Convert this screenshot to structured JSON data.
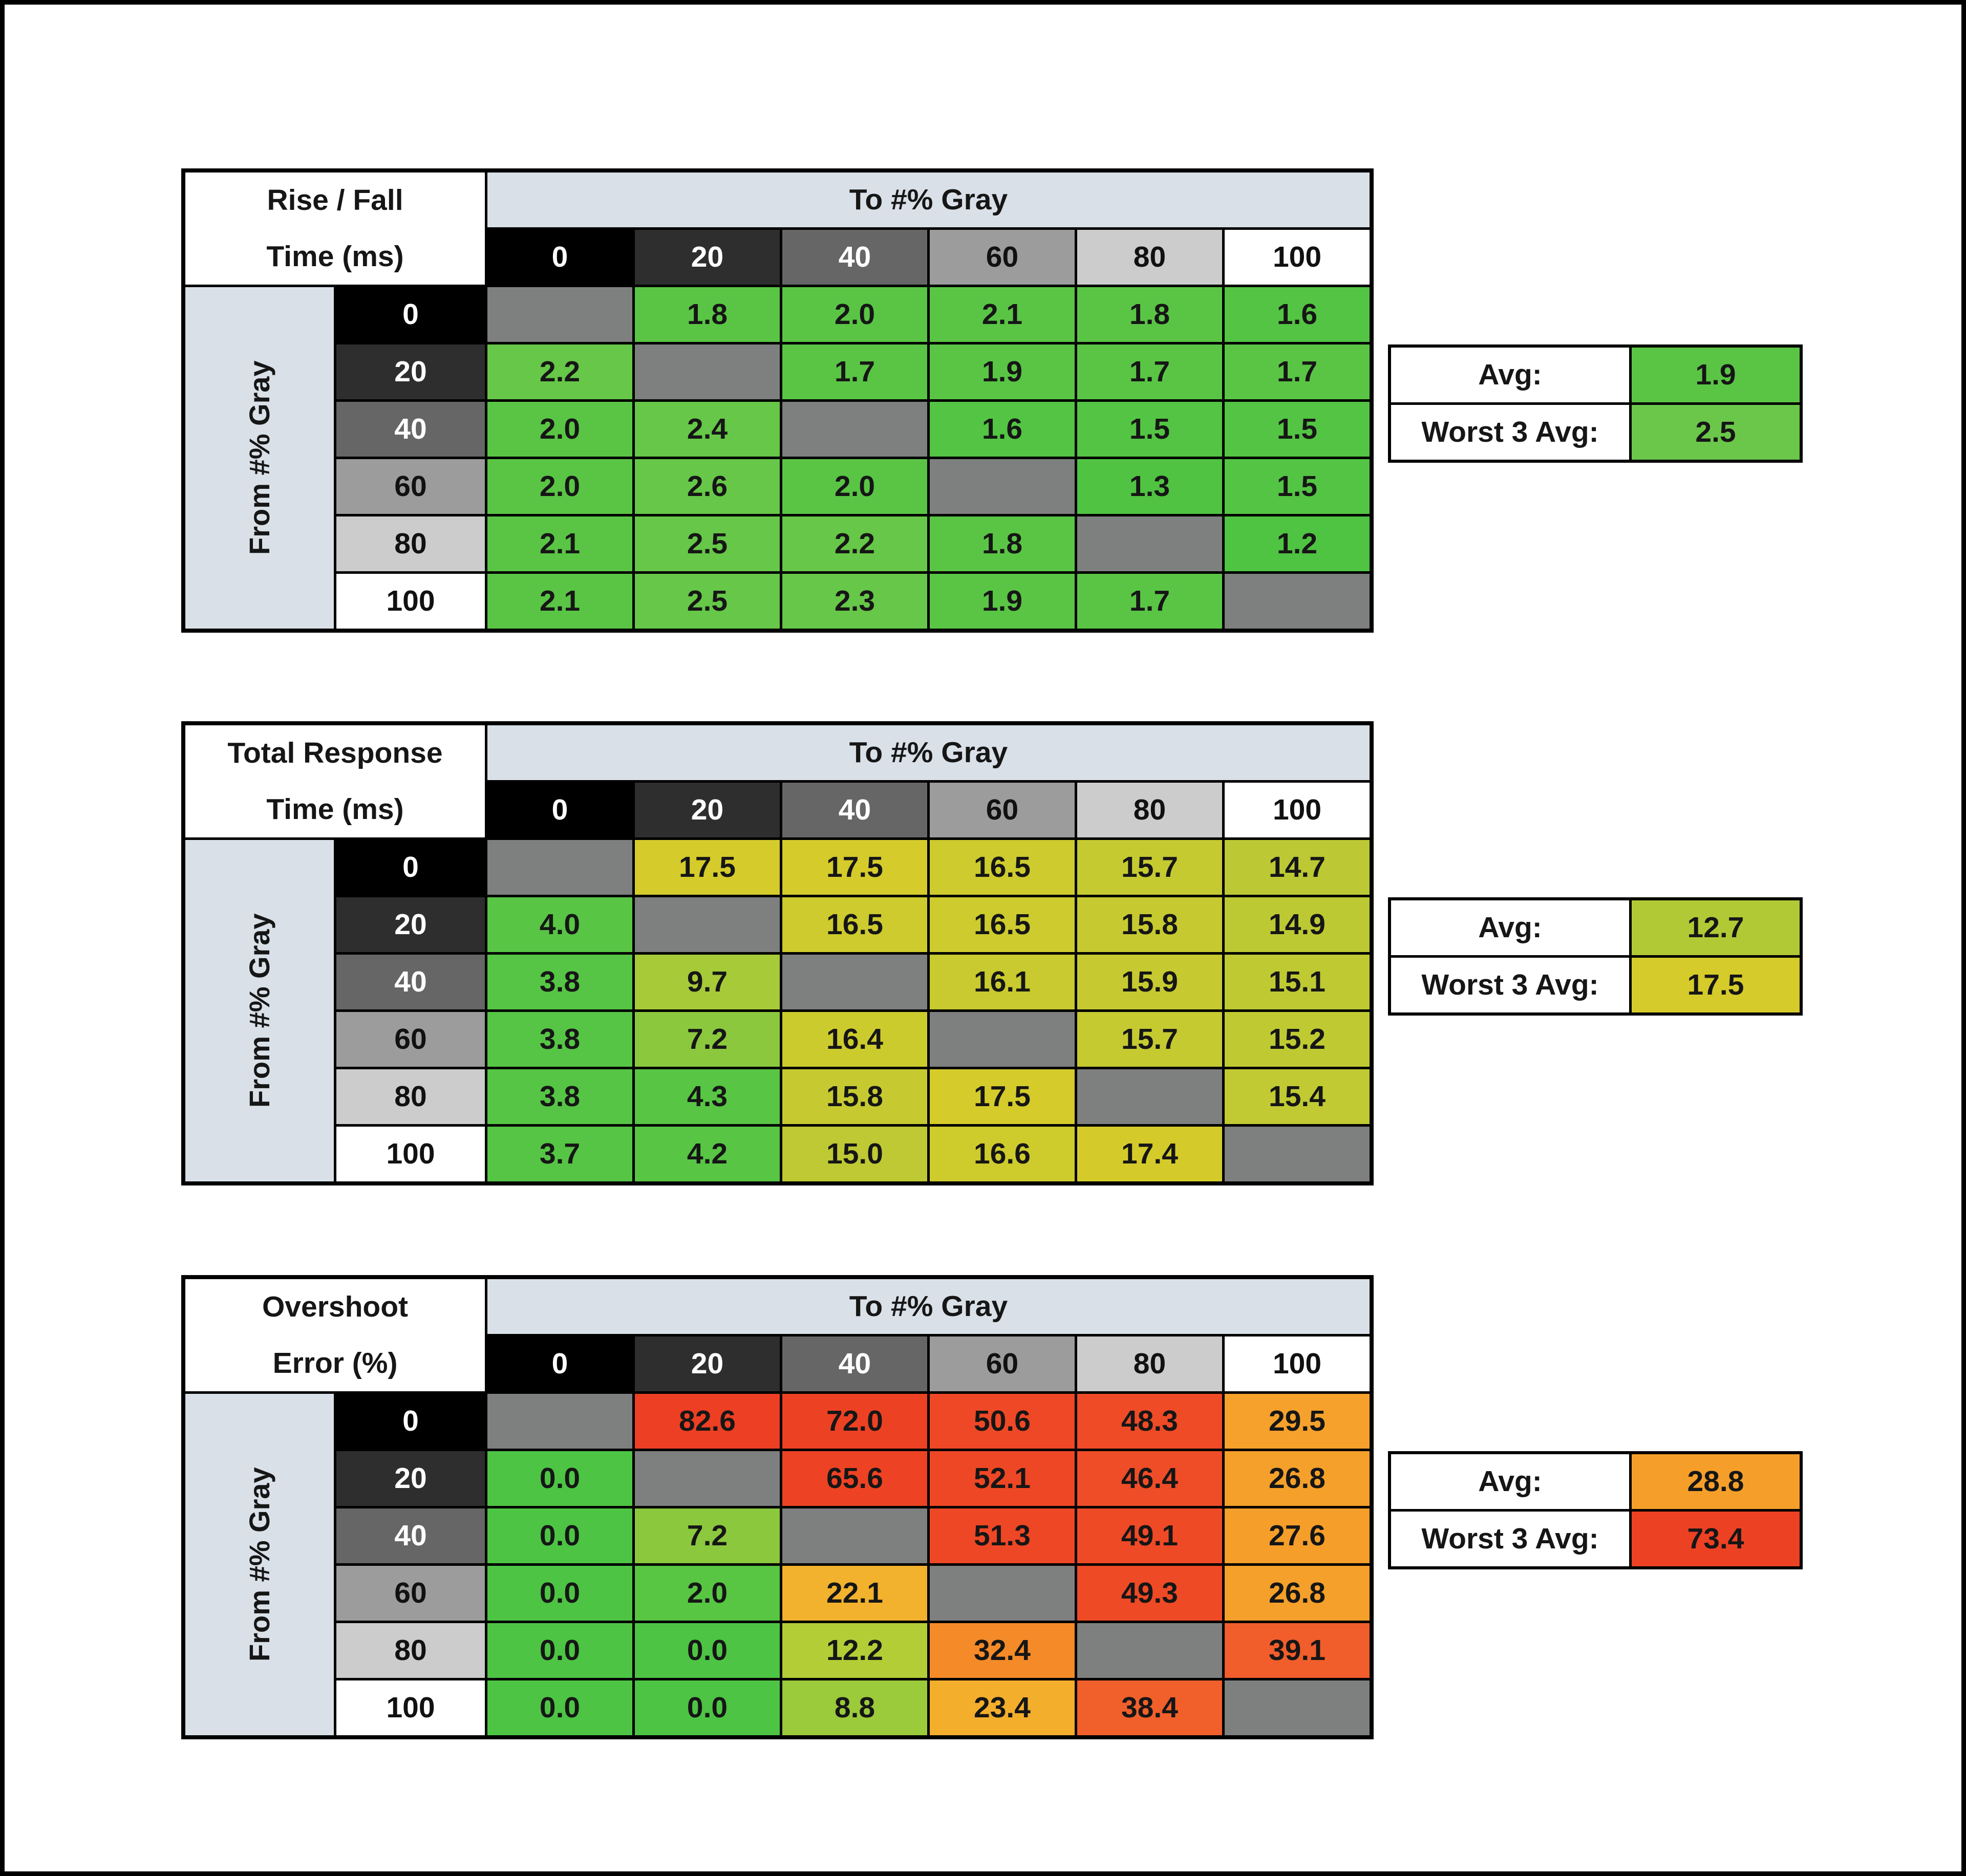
{
  "page": {
    "background": "#ffffff",
    "frame_color": "#000000",
    "header_band_color": "#D9E0E8",
    "diagonal_color": "#7E7F7F",
    "grid_line_color": "#000000"
  },
  "labels": {
    "col_headers": [
      "0",
      "20",
      "40",
      "60",
      "80",
      "100"
    ],
    "row_headers": [
      "0",
      "20",
      "40",
      "60",
      "80",
      "100"
    ],
    "header_shades": [
      "#000000",
      "#2E2E2E",
      "#666666",
      "#9C9C9C",
      "#CCCCCC",
      "#FFFFFF"
    ],
    "header_text_colors": [
      "#FFFFFF",
      "#FFFFFF",
      "#FFFFFF",
      "#111111",
      "#111111",
      "#111111"
    ]
  },
  "chart_data": [
    {
      "type": "heatmap",
      "title_lines": [
        "Rise / Fall",
        "Time (ms)"
      ],
      "col_axis_label": "To #% Gray",
      "row_axis_label": "From #% Gray",
      "columns": [
        "0",
        "20",
        "40",
        "60",
        "80",
        "100"
      ],
      "rows": [
        "0",
        "20",
        "40",
        "60",
        "80",
        "100"
      ],
      "values": [
        [
          null,
          1.8,
          2.0,
          2.1,
          1.8,
          1.6
        ],
        [
          2.2,
          null,
          1.7,
          1.9,
          1.7,
          1.7
        ],
        [
          2.0,
          2.4,
          null,
          1.6,
          1.5,
          1.5
        ],
        [
          2.0,
          2.6,
          2.0,
          null,
          1.3,
          1.5
        ],
        [
          2.1,
          2.5,
          2.2,
          1.8,
          null,
          1.2
        ],
        [
          2.1,
          2.5,
          2.3,
          1.9,
          1.7,
          null
        ]
      ],
      "cell_colors": [
        [
          null,
          "#5AC545",
          "#5AC545",
          "#5AC545",
          "#5AC545",
          "#53C443"
        ],
        [
          "#66C748",
          null,
          "#5AC545",
          "#5AC545",
          "#5AC545",
          "#5AC545"
        ],
        [
          "#5AC545",
          "#66C748",
          null,
          "#53C443",
          "#53C443",
          "#53C443"
        ],
        [
          "#5AC545",
          "#66C748",
          "#5AC545",
          null,
          "#50C342",
          "#53C443"
        ],
        [
          "#5AC545",
          "#66C748",
          "#66C748",
          "#5AC545",
          null,
          "#4FC342"
        ],
        [
          "#5AC545",
          "#66C748",
          "#66C748",
          "#5AC545",
          "#5AC545",
          null
        ]
      ],
      "summary": {
        "avg_label": "Avg:",
        "avg_value": 1.9,
        "avg_color": "#5AC545",
        "worst_label": "Worst 3 Avg:",
        "worst_value": 2.5,
        "worst_color": "#6BC74A"
      }
    },
    {
      "type": "heatmap",
      "title_lines": [
        "Total Response",
        "Time (ms)"
      ],
      "col_axis_label": "To #% Gray",
      "row_axis_label": "From #% Gray",
      "columns": [
        "0",
        "20",
        "40",
        "60",
        "80",
        "100"
      ],
      "rows": [
        "0",
        "20",
        "40",
        "60",
        "80",
        "100"
      ],
      "values": [
        [
          null,
          17.5,
          17.5,
          16.5,
          15.7,
          14.7
        ],
        [
          4.0,
          null,
          16.5,
          16.5,
          15.8,
          14.9
        ],
        [
          3.8,
          9.7,
          null,
          16.1,
          15.9,
          15.1
        ],
        [
          3.8,
          7.2,
          16.4,
          null,
          15.7,
          15.2
        ],
        [
          3.8,
          4.3,
          15.8,
          17.5,
          null,
          15.4
        ],
        [
          3.7,
          4.2,
          15.0,
          16.6,
          17.4,
          null
        ]
      ],
      "cell_colors": [
        [
          null,
          "#D5CB2B",
          "#D5CB2B",
          "#CDCB2E",
          "#C5CA31",
          "#BCC934"
        ],
        [
          "#58C545",
          null,
          "#CDCB2E",
          "#CDCB2E",
          "#C6CA30",
          "#BDC933"
        ],
        [
          "#56C545",
          "#A7CA39",
          null,
          "#C8CA2F",
          "#C6CA30",
          "#BFCA33"
        ],
        [
          "#56C545",
          "#8BC83E",
          "#CCCB2E",
          null,
          "#C5CA31",
          "#BFCA32"
        ],
        [
          "#56C545",
          "#58C545",
          "#C6CA30",
          "#D5CB2B",
          null,
          "#C1CA32"
        ],
        [
          "#56C545",
          "#58C545",
          "#BEC933",
          "#CECB2D",
          "#D4CB2B",
          null
        ]
      ],
      "summary": {
        "avg_label": "Avg:",
        "avg_value": 12.7,
        "avg_color": "#B2C936",
        "worst_label": "Worst 3 Avg:",
        "worst_value": 17.5,
        "worst_color": "#D5CB2B"
      }
    },
    {
      "type": "heatmap",
      "title_lines": [
        "Overshoot",
        "Error (%)"
      ],
      "col_axis_label": "To #% Gray",
      "row_axis_label": "From #% Gray",
      "columns": [
        "0",
        "20",
        "40",
        "60",
        "80",
        "100"
      ],
      "rows": [
        "0",
        "20",
        "40",
        "60",
        "80",
        "100"
      ],
      "values": [
        [
          null,
          82.6,
          72.0,
          50.6,
          48.3,
          29.5
        ],
        [
          0.0,
          null,
          65.6,
          52.1,
          46.4,
          26.8
        ],
        [
          0.0,
          7.2,
          null,
          51.3,
          49.1,
          27.6
        ],
        [
          0.0,
          2.0,
          22.1,
          null,
          49.3,
          26.8
        ],
        [
          0.0,
          0.0,
          12.2,
          32.4,
          null,
          39.1
        ],
        [
          0.0,
          0.0,
          8.8,
          23.4,
          38.4,
          null
        ]
      ],
      "cell_colors": [
        [
          null,
          "#EC3F23",
          "#ED4124",
          "#EE4826",
          "#EF4B26",
          "#F5A12B"
        ],
        [
          "#4DC444",
          null,
          "#ED4324",
          "#EE4725",
          "#EF4D27",
          "#F5A02A"
        ],
        [
          "#4DC444",
          "#8BC83E",
          null,
          "#EE4725",
          "#EF4A26",
          "#F59E2A"
        ],
        [
          "#4DC444",
          "#58C543",
          "#F2B22D",
          null,
          "#EF4A26",
          "#F5A02A"
        ],
        [
          "#4DC444",
          "#4DC444",
          "#B3CD36",
          "#F48B28",
          null,
          "#F15D2B"
        ],
        [
          "#4DC444",
          "#4DC444",
          "#9BCA3B",
          "#F3AE2C",
          "#F15F2B",
          null
        ]
      ],
      "summary": {
        "avg_label": "Avg:",
        "avg_value": 28.8,
        "avg_color": "#F59F2A",
        "worst_label": "Worst 3 Avg:",
        "worst_value": 73.4,
        "worst_color": "#ED4124"
      }
    }
  ]
}
